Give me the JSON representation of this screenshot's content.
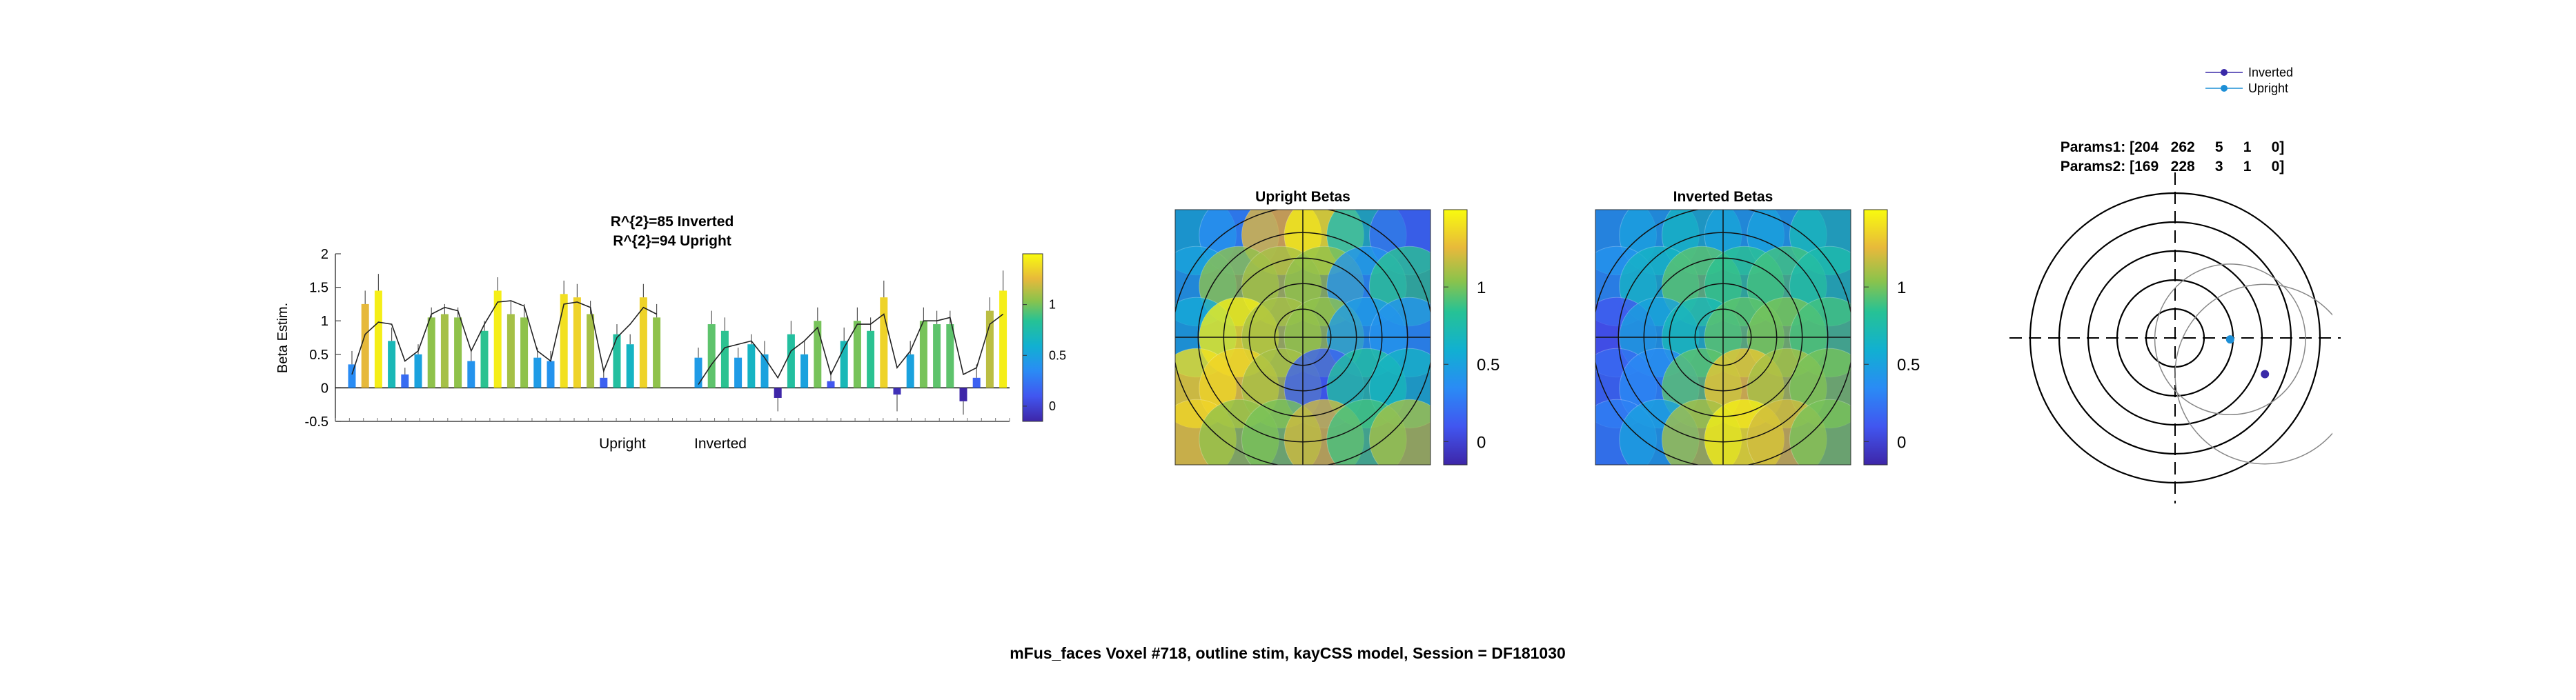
{
  "figure": {
    "suptitle": "mFus_faces Voxel #718, outline stim, kayCSS model, Session = DF181030"
  },
  "colors": {
    "bar_low": "#3b2ccf",
    "bar_high": "#f8e61c",
    "fit_line": "#222222",
    "upright_marker": "#1d8fd6",
    "inverted_marker": "#3a2aa8",
    "rf_circles": "#888888",
    "map_background": "#3d2bbd"
  },
  "chart_data": [
    {
      "type": "bar",
      "id": "beta-bars",
      "title_line1": "R^{2}=85 Inverted",
      "title_line2": "R^{2}=94 Upright",
      "ylabel": "Beta Estim.",
      "xlabel": "",
      "ylim": [
        -0.5,
        2
      ],
      "yticks": [
        "-0.5",
        "0",
        "0.5",
        "1",
        "1.5",
        "2"
      ],
      "ytick_values": [
        -0.5,
        0,
        0.5,
        1,
        1.5,
        2
      ],
      "group_labels": [
        "Upright",
        "Inverted"
      ],
      "series": [
        {
          "name": "Upright",
          "values": [
            0.35,
            1.25,
            1.45,
            0.7,
            0.2,
            0.5,
            1.05,
            1.1,
            1.05,
            0.4,
            0.85,
            1.45,
            1.1,
            1.05,
            0.45,
            0.4,
            1.4,
            1.35,
            1.1,
            0.15,
            0.8,
            0.65,
            1.35,
            1.05
          ],
          "errors": [
            0.2,
            0.2,
            0.25,
            0.2,
            0.1,
            0.15,
            0.15,
            0.15,
            0.15,
            0.15,
            0.15,
            0.2,
            0.2,
            0.2,
            0.15,
            0.15,
            0.2,
            0.2,
            0.2,
            0.1,
            0.15,
            0.15,
            0.2,
            0.2
          ],
          "fit": [
            0.2,
            0.8,
            0.98,
            0.95,
            0.4,
            0.55,
            1.1,
            1.2,
            1.15,
            0.55,
            0.95,
            1.28,
            1.3,
            1.22,
            0.55,
            0.4,
            1.25,
            1.28,
            1.2,
            0.25,
            0.75,
            0.95,
            1.2,
            1.1
          ]
        },
        {
          "name": "Inverted",
          "values": [
            0.45,
            0.95,
            0.85,
            0.45,
            0.65,
            0.5,
            -0.15,
            0.8,
            0.5,
            1.0,
            0.1,
            0.7,
            1.0,
            0.85,
            1.35,
            -0.1,
            0.5,
            1.0,
            0.95,
            0.95,
            -0.2,
            0.15,
            1.15,
            1.45
          ],
          "errors": [
            0.15,
            0.2,
            0.2,
            0.15,
            0.15,
            0.2,
            0.2,
            0.2,
            0.2,
            0.2,
            0.15,
            0.2,
            0.2,
            0.2,
            0.25,
            0.25,
            0.2,
            0.2,
            0.2,
            0.2,
            0.2,
            0.2,
            0.2,
            0.3
          ],
          "fit": [
            0.05,
            0.35,
            0.6,
            0.65,
            0.7,
            0.45,
            0.15,
            0.55,
            0.7,
            0.9,
            0.2,
            0.6,
            0.95,
            0.95,
            1.1,
            0.3,
            0.55,
            1.0,
            1.0,
            1.05,
            0.2,
            0.3,
            0.95,
            1.1
          ]
        }
      ]
    },
    {
      "type": "heatmap",
      "id": "upright-betas",
      "title": "Upright Betas",
      "colorbar_ticks": [
        "1",
        "0.5",
        "0"
      ],
      "colorbar_tick_values": [
        1,
        0.5,
        0
      ],
      "clim": [
        -0.15,
        1.5
      ],
      "stim_grid": [
        [
          0.6,
          0.35,
          1.25,
          1.45,
          0.7,
          0.2
        ],
        [
          0.5,
          1.05,
          1.1,
          1.05,
          0.4,
          0.85
        ],
        [
          0.55,
          1.45,
          1.1,
          1.05,
          0.45,
          0.4
        ],
        [
          1.4,
          1.35,
          1.1,
          0.15,
          0.8,
          0.65
        ],
        [
          1.35,
          1.05,
          1.0,
          1.2,
          0.9,
          1.1
        ]
      ]
    },
    {
      "type": "heatmap",
      "id": "inverted-betas",
      "title": "Inverted Betas",
      "colorbar_ticks": [
        "1",
        "0.5",
        "0"
      ],
      "colorbar_tick_values": [
        1,
        0.5,
        0
      ],
      "clim": [
        -0.15,
        1.5
      ],
      "stim_grid": [
        [
          0.45,
          0.5,
          0.65,
          0.5,
          0.5,
          0.7
        ],
        [
          0.4,
          0.65,
          0.95,
          0.85,
          0.9,
          0.75
        ],
        [
          0.1,
          0.5,
          0.7,
          0.95,
          1.0,
          0.9
        ],
        [
          0.2,
          0.35,
          0.95,
          1.3,
          1.1,
          1.0
        ],
        [
          0.3,
          0.5,
          1.1,
          1.45,
          1.2,
          1.0
        ]
      ]
    },
    {
      "type": "scatter",
      "id": "prf-params",
      "title_line1": "Params1: [204   262     5     1     0]",
      "title_line2": "Params2: [169   228     3     1     0]",
      "legend": [
        {
          "name": "Inverted"
        },
        {
          "name": "Upright"
        }
      ],
      "legend_position": "top",
      "points": [
        {
          "series": "Inverted",
          "x": 0.62,
          "y": -0.25
        },
        {
          "series": "Upright",
          "x": 0.38,
          "y": -0.01
        }
      ],
      "prf_circles": [
        {
          "series": "Inverted",
          "cx": 0.62,
          "cy": -0.25,
          "r": 0.62
        },
        {
          "series": "Upright",
          "cx": 0.38,
          "cy": -0.01,
          "r": 0.52
        }
      ],
      "polar_rings": [
        0.2,
        0.4,
        0.6,
        0.8,
        1.0
      ]
    }
  ]
}
